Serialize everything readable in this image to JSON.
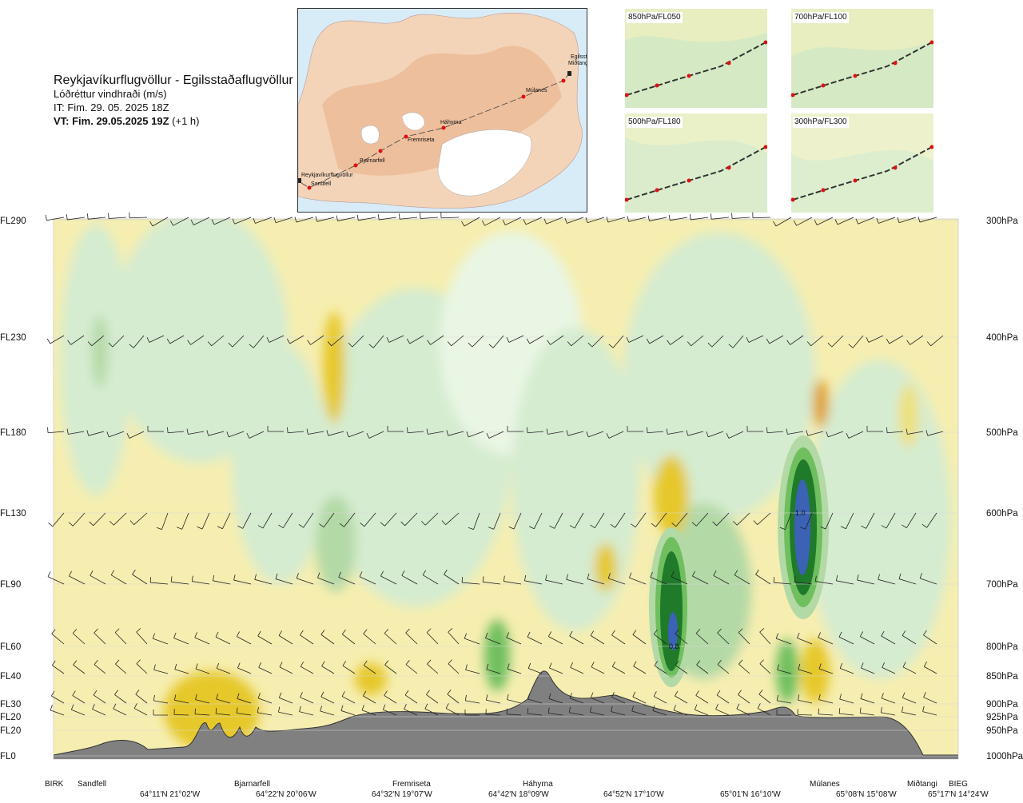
{
  "header": {
    "title": "Reykjavíkurflugvöllur - Egilsstaðaflugvöllur",
    "subtitle": "Lóðréttur vindhraði (m/s)",
    "issue_time": "IT: Fim. 29. 05. 2025 18Z",
    "valid_time_bold": "VT: Fim. 29.05.2025 19Z",
    "valid_time_offset": "(+1 h)"
  },
  "map": {
    "points": [
      {
        "name": "Reykjavíkurflugvöllur"
      },
      {
        "name": "Sandfell"
      },
      {
        "name": "Bjarnarfell"
      },
      {
        "name": "Fremriseta"
      },
      {
        "name": "Háhyrna"
      },
      {
        "name": "Múlanes"
      },
      {
        "name": "Miðtangi"
      },
      {
        "name": "Egilsstaðir"
      }
    ]
  },
  "thumbnails": [
    {
      "label": "850hPa/FL050"
    },
    {
      "label": "700hPa/FL100"
    },
    {
      "label": "500hPa/FL180"
    },
    {
      "label": "300hPa/FL300"
    }
  ],
  "chart_data": {
    "type": "heatmap",
    "quantity": "Lóðréttur vindhraði (m/s)",
    "levels": [
      {
        "fl": "FL290",
        "hpa": "300hPa"
      },
      {
        "fl": "FL230",
        "hpa": "400hPa"
      },
      {
        "fl": "FL180",
        "hpa": "500hPa"
      },
      {
        "fl": "FL130",
        "hpa": "600hPa"
      },
      {
        "fl": "FL90",
        "hpa": "700hPa"
      },
      {
        "fl": "FL60",
        "hpa": "800hPa"
      },
      {
        "fl": "FL40",
        "hpa": "850hPa"
      },
      {
        "fl": "FL30",
        "hpa": "900hPa"
      },
      {
        "fl": "FL20",
        "hpa": "925hPa"
      },
      {
        "fl": "FL20",
        "hpa": "950hPa"
      },
      {
        "fl": "FL0",
        "hpa": "1000hPa"
      }
    ],
    "x_stations": [
      "BIRK",
      "Sandfell",
      "Bjarnarfell",
      "Fremriseta",
      "Háhyrna",
      "Múlanes",
      "Miðtangi",
      "BIEG"
    ],
    "x_coords": [
      "64°11'N 21°02'W",
      "64°22'N 20°06'W",
      "64°32'N 19°07'W",
      "64°42'N 18°09'W",
      "64°52'N 17°10'W",
      "65°01'N 16°10'W",
      "65°08'N 15°08'W",
      "65°17'N 14°24'W"
    ],
    "annotations": [
      {
        "text": "1.0",
        "near": "Múlanes",
        "level": "600hPa"
      },
      {
        "text": "0.8",
        "near": "64°52'N 17°10'W",
        "level": "800hPa"
      }
    ],
    "colors": {
      "neg_weak": "#f6eeb0",
      "neg_mid": "#efe07a",
      "neg_strong": "#e6c82a",
      "neg_max": "#e0a020",
      "pos_weak": "#d5ecd0",
      "pos_mid": "#b3d9a6",
      "pos_strong": "#6fbf5e",
      "pos_max": "#1f7a2a",
      "core": "#3b62b5",
      "terrain": "#808080"
    }
  }
}
